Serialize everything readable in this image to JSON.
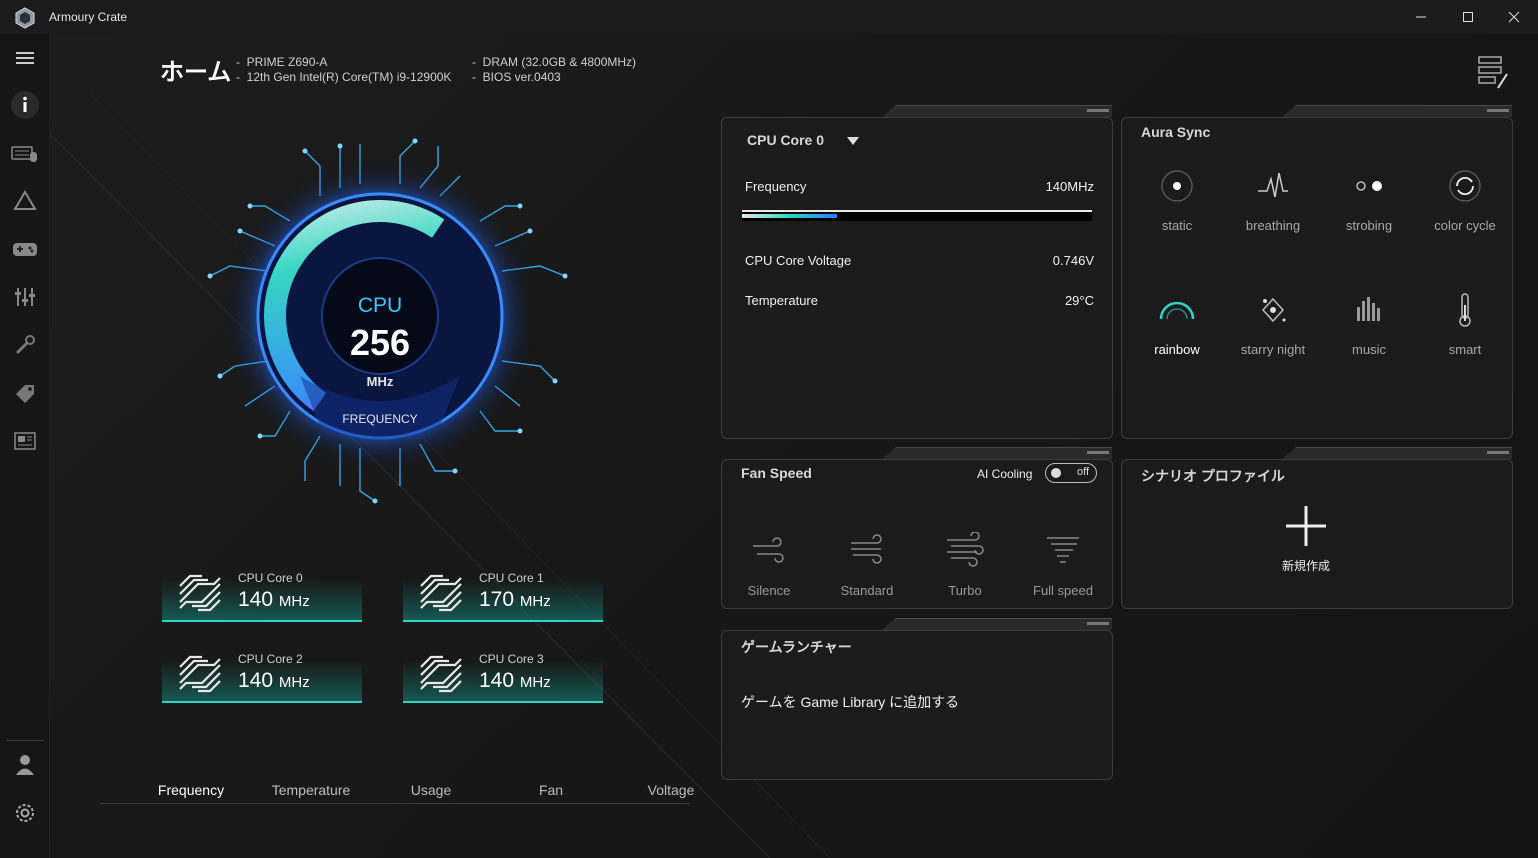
{
  "window": {
    "title": "Armoury Crate"
  },
  "header": {
    "title": "ホーム",
    "specs_left": [
      "PRIME Z690-A",
      "12th Gen Intel(R) Core(TM) i9-12900K"
    ],
    "specs_right": [
      "DRAM (32.0GB & 4800MHz)",
      "BIOS ver.0403"
    ]
  },
  "gauge": {
    "label": "CPU",
    "value": "256",
    "unit": "MHz",
    "caption": "FREQUENCY",
    "level": 0.62
  },
  "cores": [
    {
      "name": "CPU Core 0",
      "value": "140",
      "unit": "MHz"
    },
    {
      "name": "CPU Core 1",
      "value": "170",
      "unit": "MHz"
    },
    {
      "name": "CPU Core 2",
      "value": "140",
      "unit": "MHz"
    },
    {
      "name": "CPU Core 3",
      "value": "140",
      "unit": "MHz"
    }
  ],
  "tabs": [
    "Frequency",
    "Temperature",
    "Usage",
    "Fan",
    "Voltage"
  ],
  "active_tab": "Frequency",
  "core_panel": {
    "selected": "CPU Core 0",
    "frequency_label": "Frequency",
    "frequency_value": "140MHz",
    "frequency_level": 0.27,
    "voltage_label": "CPU Core Voltage",
    "voltage_value": "0.746V",
    "temp_label": "Temperature",
    "temp_value": "29°C"
  },
  "aura": {
    "title": "Aura Sync",
    "effects": [
      {
        "label": "static",
        "icon": "static-icon"
      },
      {
        "label": "breathing",
        "icon": "breathing-icon"
      },
      {
        "label": "strobing",
        "icon": "strobing-icon"
      },
      {
        "label": "color cycle",
        "icon": "color-cycle-icon"
      },
      {
        "label": "rainbow",
        "icon": "rainbow-icon"
      },
      {
        "label": "starry night",
        "icon": "starry-night-icon"
      },
      {
        "label": "music",
        "icon": "music-icon"
      },
      {
        "label": "smart",
        "icon": "smart-icon"
      }
    ],
    "selected": "rainbow"
  },
  "fan": {
    "title": "Fan Speed",
    "ai_label": "AI Cooling",
    "ai_state": "off",
    "modes": [
      "Silence",
      "Standard",
      "Turbo",
      "Full speed"
    ]
  },
  "scenario": {
    "title": "シナリオ プロファイル",
    "new_label": "新規作成"
  },
  "game": {
    "title": "ゲームランチャー",
    "add_text": "ゲームを Game Library に追加する"
  },
  "colors": {
    "accent_teal": "#2fd3c4",
    "accent_blue": "#2a7bff",
    "gauge_purple": "#7a3cff"
  }
}
